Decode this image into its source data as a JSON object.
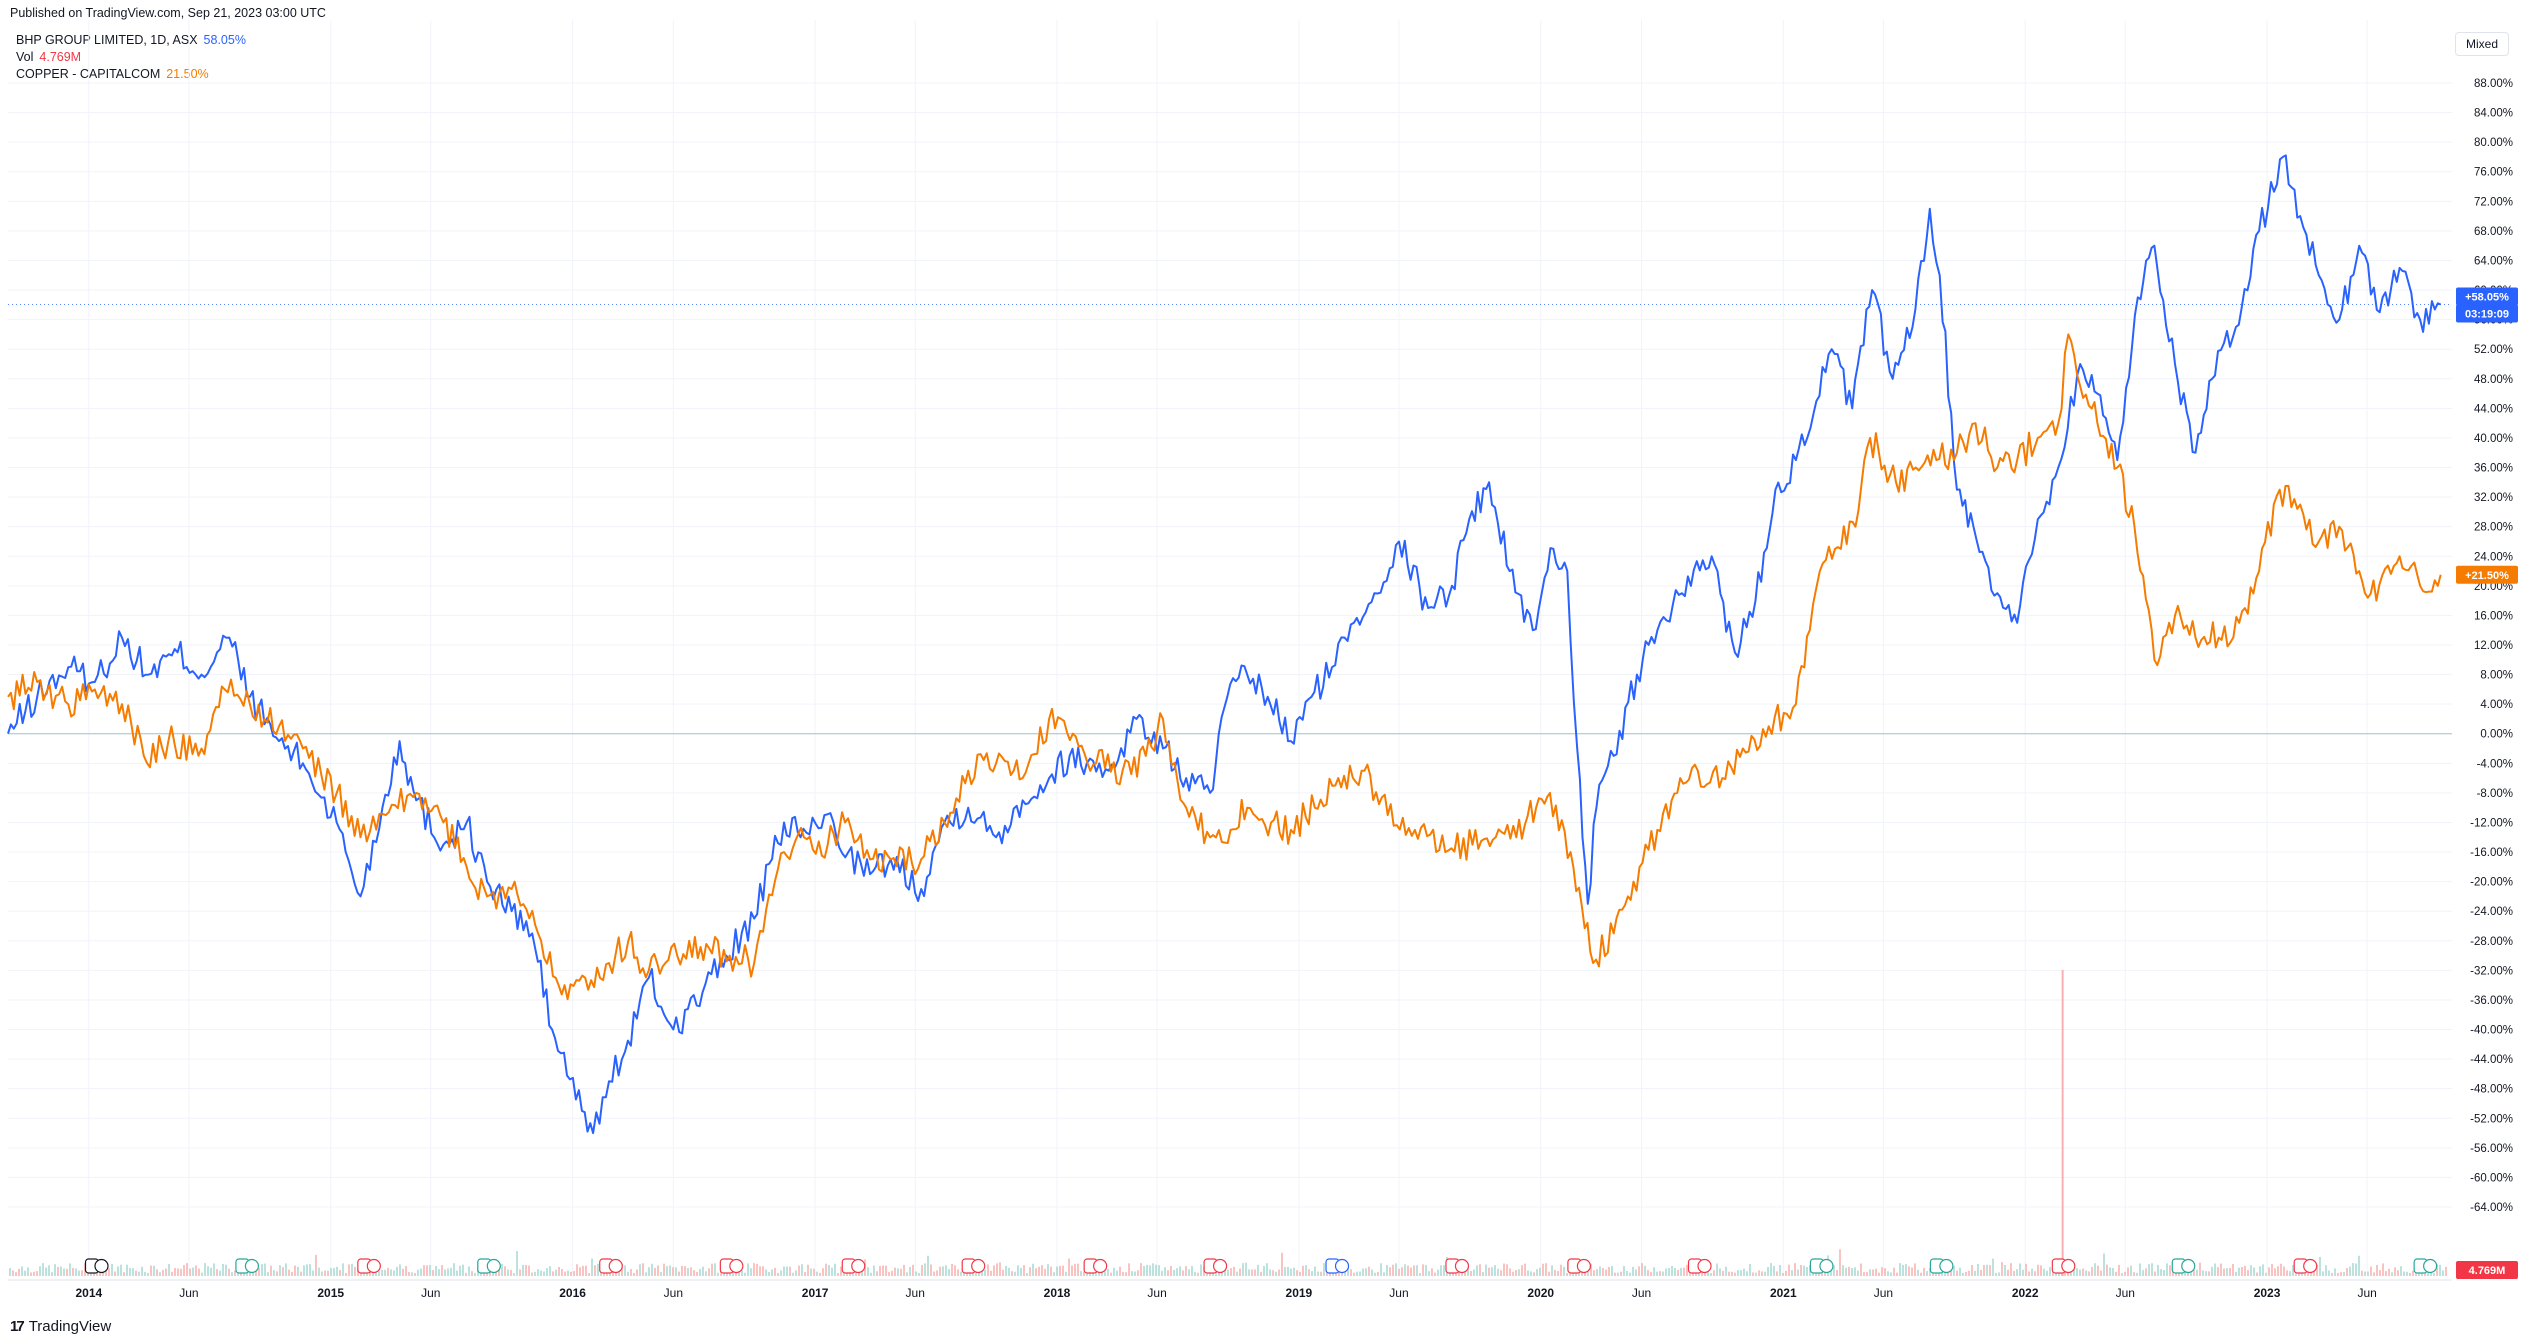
{
  "header": {
    "published": "Published on TradingView.com, Sep 21, 2023 03:00 UTC"
  },
  "legend": [
    {
      "label": "BHP GROUP LIMITED, 1D, ASX",
      "value": "58.05%",
      "color": "#2962ff"
    },
    {
      "label": "Vol",
      "value": "4.769M",
      "color": "#f23645"
    },
    {
      "label": "COPPER - CAPITALCOM",
      "value": "21.50%",
      "color": "#f57c00"
    }
  ],
  "scale_mode": "Mixed",
  "footer": {
    "brand": "TradingView"
  },
  "price_labels": {
    "bhp": {
      "value": "+58.05%",
      "countdown": "03:19:09"
    },
    "copper": {
      "value": "+21.50%"
    },
    "volume": {
      "value": "4.769M"
    }
  },
  "chart_data": {
    "type": "line",
    "title": "",
    "xlabel": "",
    "ylabel": "",
    "x_range": [
      "2013-09",
      "2023-09"
    ],
    "ylim": [
      -64,
      88
    ],
    "y_unit": "%",
    "y_ticks": [
      88,
      84,
      80,
      76,
      72,
      68,
      64,
      60,
      56,
      52,
      48,
      44,
      40,
      36,
      32,
      28,
      24,
      20,
      16,
      12,
      8,
      4,
      0,
      -4,
      -8,
      -12,
      -16,
      -20,
      -24,
      -28,
      -32,
      -36,
      -40,
      -44,
      -48,
      -52,
      -56,
      -60,
      -64
    ],
    "x_ticks": [
      {
        "label": "2014",
        "date": "2014-01-01",
        "bold": true
      },
      {
        "label": "Jun",
        "date": "2014-06-01",
        "bold": false
      },
      {
        "label": "2015",
        "date": "2015-01-01",
        "bold": true
      },
      {
        "label": "Jun",
        "date": "2015-06-01",
        "bold": false
      },
      {
        "label": "2016",
        "date": "2016-01-01",
        "bold": true
      },
      {
        "label": "Jun",
        "date": "2016-06-01",
        "bold": false
      },
      {
        "label": "2017",
        "date": "2017-01-01",
        "bold": true
      },
      {
        "label": "Jun",
        "date": "2017-06-01",
        "bold": false
      },
      {
        "label": "2018",
        "date": "2018-01-01",
        "bold": true
      },
      {
        "label": "Jun",
        "date": "2018-06-01",
        "bold": false
      },
      {
        "label": "2019",
        "date": "2019-01-01",
        "bold": true
      },
      {
        "label": "Jun",
        "date": "2019-06-01",
        "bold": false
      },
      {
        "label": "2020",
        "date": "2020-01-01",
        "bold": true
      },
      {
        "label": "Jun",
        "date": "2020-06-01",
        "bold": false
      },
      {
        "label": "2021",
        "date": "2021-01-01",
        "bold": true
      },
      {
        "label": "Jun",
        "date": "2021-06-01",
        "bold": false
      },
      {
        "label": "2022",
        "date": "2022-01-01",
        "bold": true
      },
      {
        "label": "Jun",
        "date": "2022-06-01",
        "bold": false
      },
      {
        "label": "2023",
        "date": "2023-01-01",
        "bold": true
      },
      {
        "label": "Jun",
        "date": "2023-06-01",
        "bold": false
      }
    ],
    "grid": true,
    "legend_position": "top-left",
    "series": [
      {
        "name": "BHP GROUP LIMITED, 1D, ASX",
        "color": "#2962ff",
        "last_value": 58.05,
        "points": [
          [
            "2013-09-01",
            0
          ],
          [
            "2013-10-15",
            5
          ],
          [
            "2013-12-01",
            9
          ],
          [
            "2014-01-10",
            7
          ],
          [
            "2014-02-20",
            13
          ],
          [
            "2014-04-01",
            8
          ],
          [
            "2014-05-15",
            11
          ],
          [
            "2014-06-20",
            8
          ],
          [
            "2014-08-01",
            13
          ],
          [
            "2014-09-01",
            5
          ],
          [
            "2014-10-15",
            -1
          ],
          [
            "2014-11-20",
            -4
          ],
          [
            "2015-01-10",
            -12
          ],
          [
            "2015-02-15",
            -22
          ],
          [
            "2015-03-20",
            -10
          ],
          [
            "2015-04-15",
            -1
          ],
          [
            "2015-05-10",
            -9
          ],
          [
            "2015-06-20",
            -15
          ],
          [
            "2015-07-25",
            -12
          ],
          [
            "2015-08-25",
            -20
          ],
          [
            "2015-10-01",
            -24
          ],
          [
            "2015-11-01",
            -27
          ],
          [
            "2015-12-01",
            -40
          ],
          [
            "2016-01-15",
            -51
          ],
          [
            "2016-02-01",
            -54
          ],
          [
            "2016-02-25",
            -47
          ],
          [
            "2016-03-20",
            -43
          ],
          [
            "2016-04-25",
            -33
          ],
          [
            "2016-06-01",
            -40
          ],
          [
            "2016-07-15",
            -35
          ],
          [
            "2016-08-20",
            -30
          ],
          [
            "2016-10-01",
            -25
          ],
          [
            "2016-11-15",
            -12
          ],
          [
            "2016-12-10",
            -14
          ],
          [
            "2017-01-15",
            -11
          ],
          [
            "2017-02-20",
            -16
          ],
          [
            "2017-03-25",
            -19
          ],
          [
            "2017-04-25",
            -17
          ],
          [
            "2017-06-10",
            -21
          ],
          [
            "2017-07-15",
            -12
          ],
          [
            "2017-08-20",
            -10
          ],
          [
            "2017-10-01",
            -14
          ],
          [
            "2017-11-10",
            -9
          ],
          [
            "2017-12-20",
            -6
          ],
          [
            "2018-01-20",
            -3
          ],
          [
            "2018-02-15",
            -4
          ],
          [
            "2018-03-20",
            -5
          ],
          [
            "2018-05-01",
            2
          ],
          [
            "2018-06-10",
            -2
          ],
          [
            "2018-07-15",
            -6
          ],
          [
            "2018-08-20",
            -8
          ],
          [
            "2018-09-15",
            5
          ],
          [
            "2018-10-15",
            8
          ],
          [
            "2018-11-15",
            5
          ],
          [
            "2018-12-20",
            -1
          ],
          [
            "2019-01-20",
            5
          ],
          [
            "2019-02-20",
            9
          ],
          [
            "2019-03-25",
            15
          ],
          [
            "2019-04-25",
            19
          ],
          [
            "2019-06-01",
            26
          ],
          [
            "2019-07-15",
            17
          ],
          [
            "2019-08-20",
            20
          ],
          [
            "2019-09-15",
            29
          ],
          [
            "2019-10-15",
            34
          ],
          [
            "2019-11-15",
            22
          ],
          [
            "2019-12-20",
            14
          ],
          [
            "2020-01-20",
            25
          ],
          [
            "2020-02-10",
            22
          ],
          [
            "2020-02-25",
            -2
          ],
          [
            "2020-03-12",
            -23
          ],
          [
            "2020-03-25",
            -10
          ],
          [
            "2020-04-20",
            -3
          ],
          [
            "2020-05-25",
            8
          ],
          [
            "2020-06-25",
            14
          ],
          [
            "2020-08-01",
            19
          ],
          [
            "2020-09-15",
            24
          ],
          [
            "2020-10-20",
            11
          ],
          [
            "2020-11-20",
            18
          ],
          [
            "2020-12-20",
            33
          ],
          [
            "2021-01-20",
            37
          ],
          [
            "2021-02-20",
            45
          ],
          [
            "2021-03-15",
            52
          ],
          [
            "2021-04-15",
            44
          ],
          [
            "2021-05-15",
            60
          ],
          [
            "2021-06-15",
            48
          ],
          [
            "2021-07-15",
            55
          ],
          [
            "2021-08-10",
            71
          ],
          [
            "2021-08-25",
            62
          ],
          [
            "2021-09-20",
            33
          ],
          [
            "2021-10-15",
            28
          ],
          [
            "2021-11-20",
            19
          ],
          [
            "2021-12-20",
            15
          ],
          [
            "2022-01-20",
            29
          ],
          [
            "2022-02-20",
            36
          ],
          [
            "2022-03-25",
            50
          ],
          [
            "2022-04-20",
            46
          ],
          [
            "2022-05-20",
            37
          ],
          [
            "2022-06-20",
            59
          ],
          [
            "2022-07-15",
            66
          ],
          [
            "2022-08-15",
            50
          ],
          [
            "2022-09-15",
            38
          ],
          [
            "2022-10-10",
            48
          ],
          [
            "2022-11-15",
            55
          ],
          [
            "2022-12-20",
            68
          ],
          [
            "2023-01-25",
            78
          ],
          [
            "2023-02-20",
            70
          ],
          [
            "2023-03-20",
            62
          ],
          [
            "2023-04-20",
            56
          ],
          [
            "2023-05-20",
            66
          ],
          [
            "2023-06-20",
            57
          ],
          [
            "2023-07-20",
            63
          ],
          [
            "2023-08-20",
            56
          ],
          [
            "2023-09-20",
            58.05
          ]
        ]
      },
      {
        "name": "COPPER - CAPITALCOM",
        "color": "#f57c00",
        "last_value": 21.5,
        "points": [
          [
            "2013-09-01",
            5
          ],
          [
            "2013-10-15",
            7
          ],
          [
            "2013-12-01",
            4
          ],
          [
            "2014-01-10",
            6
          ],
          [
            "2014-02-20",
            4
          ],
          [
            "2014-03-25",
            -3
          ],
          [
            "2014-05-01",
            -1
          ],
          [
            "2014-06-20",
            -2
          ],
          [
            "2014-07-25",
            6
          ],
          [
            "2014-09-01",
            4
          ],
          [
            "2014-10-15",
            1
          ],
          [
            "2014-11-20",
            -2
          ],
          [
            "2015-01-10",
            -8
          ],
          [
            "2015-02-15",
            -14
          ],
          [
            "2015-03-25",
            -11
          ],
          [
            "2015-05-10",
            -8
          ],
          [
            "2015-06-20",
            -12
          ],
          [
            "2015-07-25",
            -18
          ],
          [
            "2015-08-25",
            -22
          ],
          [
            "2015-10-01",
            -21
          ],
          [
            "2015-11-10",
            -27
          ],
          [
            "2015-12-20",
            -34
          ],
          [
            "2016-01-20",
            -33
          ],
          [
            "2016-02-25",
            -31
          ],
          [
            "2016-03-25",
            -28
          ],
          [
            "2016-04-25",
            -32
          ],
          [
            "2016-05-20",
            -31
          ],
          [
            "2016-06-25",
            -28
          ],
          [
            "2016-07-25",
            -29
          ],
          [
            "2016-08-25",
            -30
          ],
          [
            "2016-10-01",
            -31
          ],
          [
            "2016-11-15",
            -16
          ],
          [
            "2016-12-15",
            -14
          ],
          [
            "2017-01-20",
            -15
          ],
          [
            "2017-02-15",
            -12
          ],
          [
            "2017-03-25",
            -17
          ],
          [
            "2017-04-25",
            -17
          ],
          [
            "2017-06-10",
            -17
          ],
          [
            "2017-07-15",
            -12
          ],
          [
            "2017-08-20",
            -5
          ],
          [
            "2017-10-01",
            -4
          ],
          [
            "2017-11-10",
            -6
          ],
          [
            "2017-12-20",
            2
          ],
          [
            "2018-01-25",
            0
          ],
          [
            "2018-03-01",
            -4
          ],
          [
            "2018-04-10",
            -5
          ],
          [
            "2018-05-15",
            -3
          ],
          [
            "2018-06-10",
            2
          ],
          [
            "2018-07-15",
            -10
          ],
          [
            "2018-08-20",
            -14
          ],
          [
            "2018-09-20",
            -13
          ],
          [
            "2018-10-15",
            -10
          ],
          [
            "2018-11-20",
            -12
          ],
          [
            "2018-12-20",
            -13
          ],
          [
            "2019-01-25",
            -10
          ],
          [
            "2019-02-25",
            -7
          ],
          [
            "2019-04-10",
            -5
          ],
          [
            "2019-05-15",
            -11
          ],
          [
            "2019-06-25",
            -13
          ],
          [
            "2019-08-10",
            -16
          ],
          [
            "2019-09-20",
            -15
          ],
          [
            "2019-10-25",
            -14
          ],
          [
            "2019-11-25",
            -14
          ],
          [
            "2019-12-25",
            -10
          ],
          [
            "2020-01-15",
            -8
          ],
          [
            "2020-02-15",
            -16
          ],
          [
            "2020-03-20",
            -31
          ],
          [
            "2020-04-20",
            -27
          ],
          [
            "2020-05-20",
            -20
          ],
          [
            "2020-06-25",
            -13
          ],
          [
            "2020-07-25",
            -8
          ],
          [
            "2020-08-25",
            -5
          ],
          [
            "2020-10-01",
            -6
          ],
          [
            "2020-11-01",
            -2
          ],
          [
            "2020-12-10",
            1
          ],
          [
            "2021-01-20",
            4
          ],
          [
            "2021-02-10",
            14
          ],
          [
            "2021-02-25",
            22
          ],
          [
            "2021-03-20",
            25
          ],
          [
            "2021-04-20",
            28
          ],
          [
            "2021-05-12",
            40
          ],
          [
            "2021-06-20",
            34
          ],
          [
            "2021-07-20",
            36
          ],
          [
            "2021-08-20",
            37
          ],
          [
            "2021-09-20",
            38
          ],
          [
            "2021-10-18",
            42
          ],
          [
            "2021-11-20",
            36
          ],
          [
            "2021-12-20",
            37
          ],
          [
            "2022-01-20",
            40
          ],
          [
            "2022-02-20",
            42
          ],
          [
            "2022-03-07",
            54
          ],
          [
            "2022-03-25",
            47
          ],
          [
            "2022-04-20",
            42
          ],
          [
            "2022-05-20",
            36
          ],
          [
            "2022-06-15",
            28
          ],
          [
            "2022-07-15",
            10
          ],
          [
            "2022-08-15",
            16
          ],
          [
            "2022-09-15",
            13
          ],
          [
            "2022-10-20",
            13
          ],
          [
            "2022-11-20",
            15
          ],
          [
            "2022-12-20",
            22
          ],
          [
            "2023-01-20",
            33
          ],
          [
            "2023-02-20",
            31
          ],
          [
            "2023-03-20",
            26
          ],
          [
            "2023-04-20",
            28
          ],
          [
            "2023-05-20",
            22
          ],
          [
            "2023-06-15",
            18
          ],
          [
            "2023-07-20",
            24
          ],
          [
            "2023-08-20",
            20
          ],
          [
            "2023-09-20",
            21.5
          ]
        ]
      }
    ],
    "volume": {
      "name": "Vol",
      "color": "#f23645",
      "last_value": "4.769M"
    }
  }
}
